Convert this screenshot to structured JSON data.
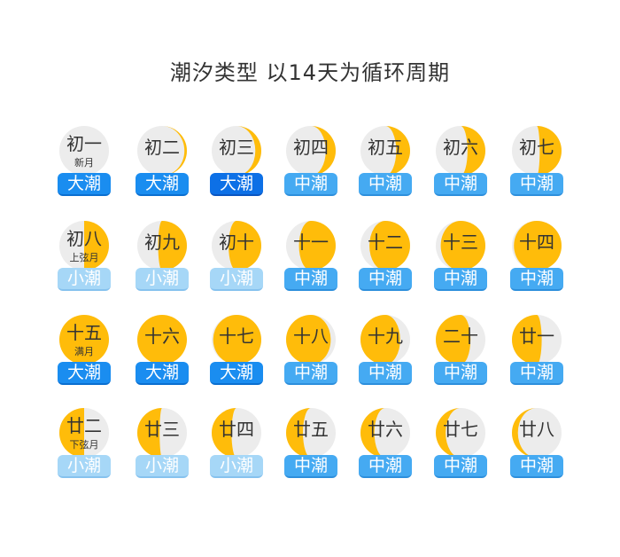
{
  "title": "潮汐类型 以14天为循环周期",
  "colors": {
    "moon_lit": "#ffbc0a",
    "moon_dark": "#ececec",
    "tide_big": "#1a8df0",
    "tide_big_strong": "#0d70e6",
    "tide_mid": "#45aaf2",
    "tide_small": "#a6d7f7"
  },
  "days": [
    {
      "day": "初一",
      "sub": "新月",
      "tide": "大潮",
      "tide_type": "big",
      "lit": 0
    },
    {
      "day": "初二",
      "sub": "",
      "tide": "大潮",
      "tide_type": "big",
      "lit": 0.05
    },
    {
      "day": "初三",
      "sub": "",
      "tide": "大潮",
      "tide_type": "big-strong",
      "lit": 0.12
    },
    {
      "day": "初四",
      "sub": "",
      "tide": "中潮",
      "tide_type": "mid",
      "lit": 0.2
    },
    {
      "day": "初五",
      "sub": "",
      "tide": "中潮",
      "tide_type": "mid",
      "lit": 0.28
    },
    {
      "day": "初六",
      "sub": "",
      "tide": "中潮",
      "tide_type": "mid",
      "lit": 0.36
    },
    {
      "day": "初七",
      "sub": "",
      "tide": "中潮",
      "tide_type": "mid",
      "lit": 0.44
    },
    {
      "day": "初八",
      "sub": "上弦月",
      "tide": "小潮",
      "tide_type": "small",
      "lit": 0.5
    },
    {
      "day": "初九",
      "sub": "",
      "tide": "小潮",
      "tide_type": "small",
      "lit": 0.58
    },
    {
      "day": "初十",
      "sub": "",
      "tide": "小潮",
      "tide_type": "small",
      "lit": 0.66
    },
    {
      "day": "十一",
      "sub": "",
      "tide": "中潮",
      "tide_type": "mid",
      "lit": 0.74
    },
    {
      "day": "十二",
      "sub": "",
      "tide": "中潮",
      "tide_type": "mid",
      "lit": 0.82
    },
    {
      "day": "十三",
      "sub": "",
      "tide": "中潮",
      "tide_type": "mid",
      "lit": 0.9
    },
    {
      "day": "十四",
      "sub": "",
      "tide": "中潮",
      "tide_type": "mid",
      "lit": 0.96
    },
    {
      "day": "十五",
      "sub": "满月",
      "tide": "大潮",
      "tide_type": "big",
      "lit": 1
    },
    {
      "day": "十六",
      "sub": "",
      "tide": "大潮",
      "tide_type": "big",
      "lit": 1
    },
    {
      "day": "十七",
      "sub": "",
      "tide": "大潮",
      "tide_type": "big",
      "lit": 0.97
    },
    {
      "day": "十八",
      "sub": "",
      "tide": "中潮",
      "tide_type": "mid",
      "lit": -0.9
    },
    {
      "day": "十九",
      "sub": "",
      "tide": "中潮",
      "tide_type": "mid",
      "lit": -0.8
    },
    {
      "day": "二十",
      "sub": "",
      "tide": "中潮",
      "tide_type": "mid",
      "lit": -0.7
    },
    {
      "day": "廿一",
      "sub": "",
      "tide": "中潮",
      "tide_type": "mid",
      "lit": -0.6
    },
    {
      "day": "廿二",
      "sub": "下弦月",
      "tide": "小潮",
      "tide_type": "small",
      "lit": -0.5
    },
    {
      "day": "廿三",
      "sub": "",
      "tide": "小潮",
      "tide_type": "small",
      "lit": -0.45
    },
    {
      "day": "廿四",
      "sub": "",
      "tide": "小潮",
      "tide_type": "small",
      "lit": -0.4
    },
    {
      "day": "廿五",
      "sub": "",
      "tide": "中潮",
      "tide_type": "mid",
      "lit": -0.34
    },
    {
      "day": "廿六",
      "sub": "",
      "tide": "中潮",
      "tide_type": "mid",
      "lit": -0.28
    },
    {
      "day": "廿七",
      "sub": "",
      "tide": "中潮",
      "tide_type": "mid",
      "lit": -0.2
    },
    {
      "day": "廿八",
      "sub": "",
      "tide": "中潮",
      "tide_type": "mid",
      "lit": -0.12
    }
  ]
}
